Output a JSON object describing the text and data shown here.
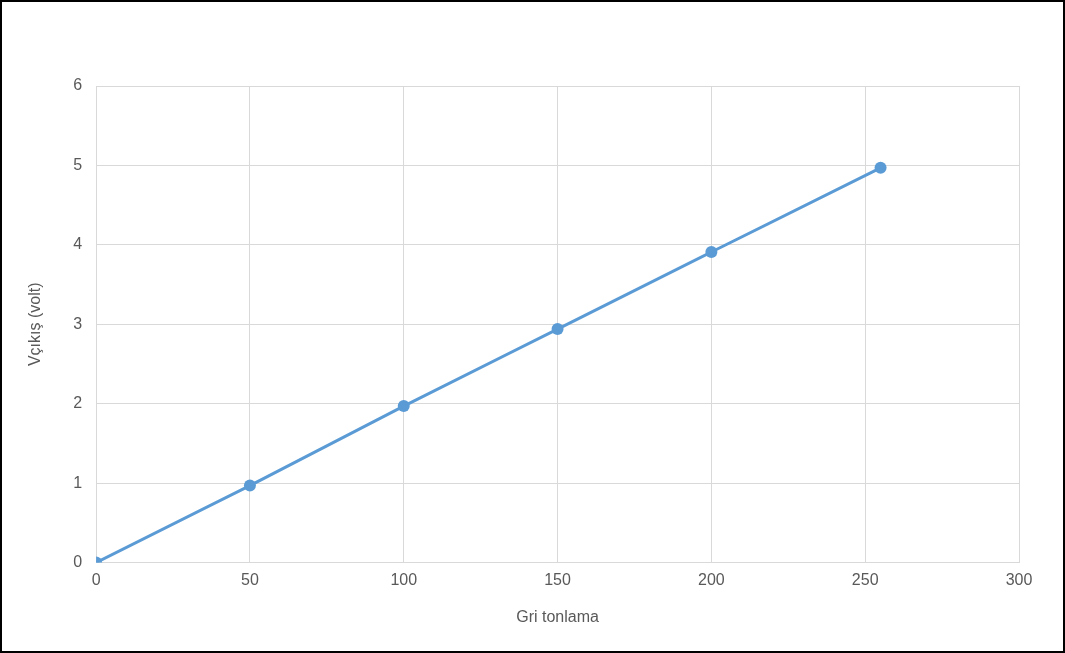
{
  "chart_data": {
    "type": "line",
    "xlabel": "Gri tonlama",
    "ylabel": "Vçıkış (volt)",
    "x": [
      0,
      50,
      100,
      150,
      200,
      255
    ],
    "series": [
      {
        "color": "#5b9bd5",
        "values": [
          0,
          0.97,
          1.97,
          2.94,
          3.91,
          4.97
        ]
      }
    ],
    "xlim": [
      0,
      300
    ],
    "xticks": [
      0,
      50,
      100,
      150,
      200,
      250,
      300
    ],
    "ylim": [
      0,
      6
    ],
    "yticks": [
      0,
      1,
      2,
      3,
      4,
      5,
      6
    ],
    "grid": true,
    "legend": false,
    "marker": "circle",
    "line_style": "solid"
  }
}
